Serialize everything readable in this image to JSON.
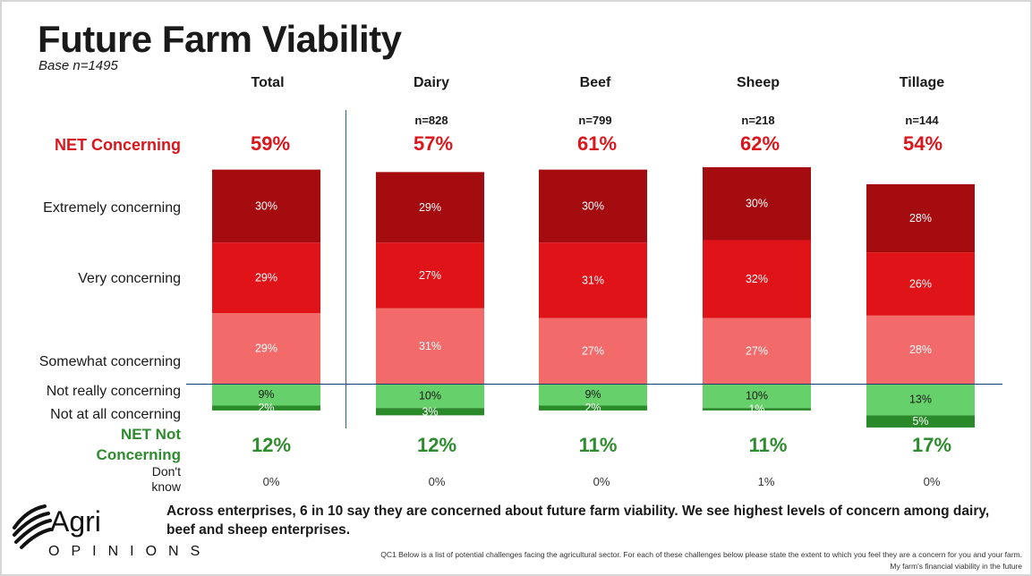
{
  "title": "Future Farm Viability",
  "base": "Base n=1495",
  "row_labels": {
    "net_concerning": "NET Concerning",
    "extremely": "Extremely concerning",
    "very": "Very concerning",
    "somewhat": "Somewhat concerning",
    "not_really": "Not really concerning",
    "not_at_all": "Not at all concerning",
    "net_not_concerning": "NET Not Concerning",
    "dont_know": "Don't know"
  },
  "chart_data": {
    "type": "bar",
    "stacked": true,
    "categories": [
      "Total",
      "Dairy",
      "Beef",
      "Sheep",
      "Tillage"
    ],
    "n": [
      "",
      "n=828",
      "n=799",
      "n=218",
      "n=144"
    ],
    "series": [
      {
        "name": "Extremely concerning",
        "values": [
          30,
          29,
          30,
          30,
          28
        ],
        "color": "#a50c0f"
      },
      {
        "name": "Very concerning",
        "values": [
          29,
          27,
          31,
          32,
          26
        ],
        "color": "#e01418"
      },
      {
        "name": "Somewhat concerning",
        "values": [
          29,
          31,
          27,
          27,
          28
        ],
        "color": "#f26a6a"
      },
      {
        "name": "Not really concerning",
        "values": [
          9,
          10,
          9,
          10,
          13
        ],
        "color": "#66d06a"
      },
      {
        "name": "Not at all concerning",
        "values": [
          2,
          3,
          2,
          1,
          5
        ],
        "color": "#2a8a2a"
      }
    ],
    "net_concerning": [
      "59%",
      "57%",
      "61%",
      "62%",
      "54%"
    ],
    "net_not_concerning": [
      "12%",
      "12%",
      "11%",
      "11%",
      "17%"
    ],
    "dont_know": [
      "0%",
      "0%",
      "0%",
      "1%",
      "0%"
    ]
  },
  "summary": "Across enterprises, 6 in 10 say they are concerned about future farm viability. We see highest levels of concern among dairy, beef and sheep enterprises.",
  "footnote_1": "QC1 Below is a list of potential challenges facing the agricultural sector. For each of these challenges below please state the extent to which you feel they are a concern for you and your farm.",
  "footnote_2": "My farm's financial viability in the future",
  "logo": {
    "name": "Agri",
    "sub": "OPINIONS"
  }
}
